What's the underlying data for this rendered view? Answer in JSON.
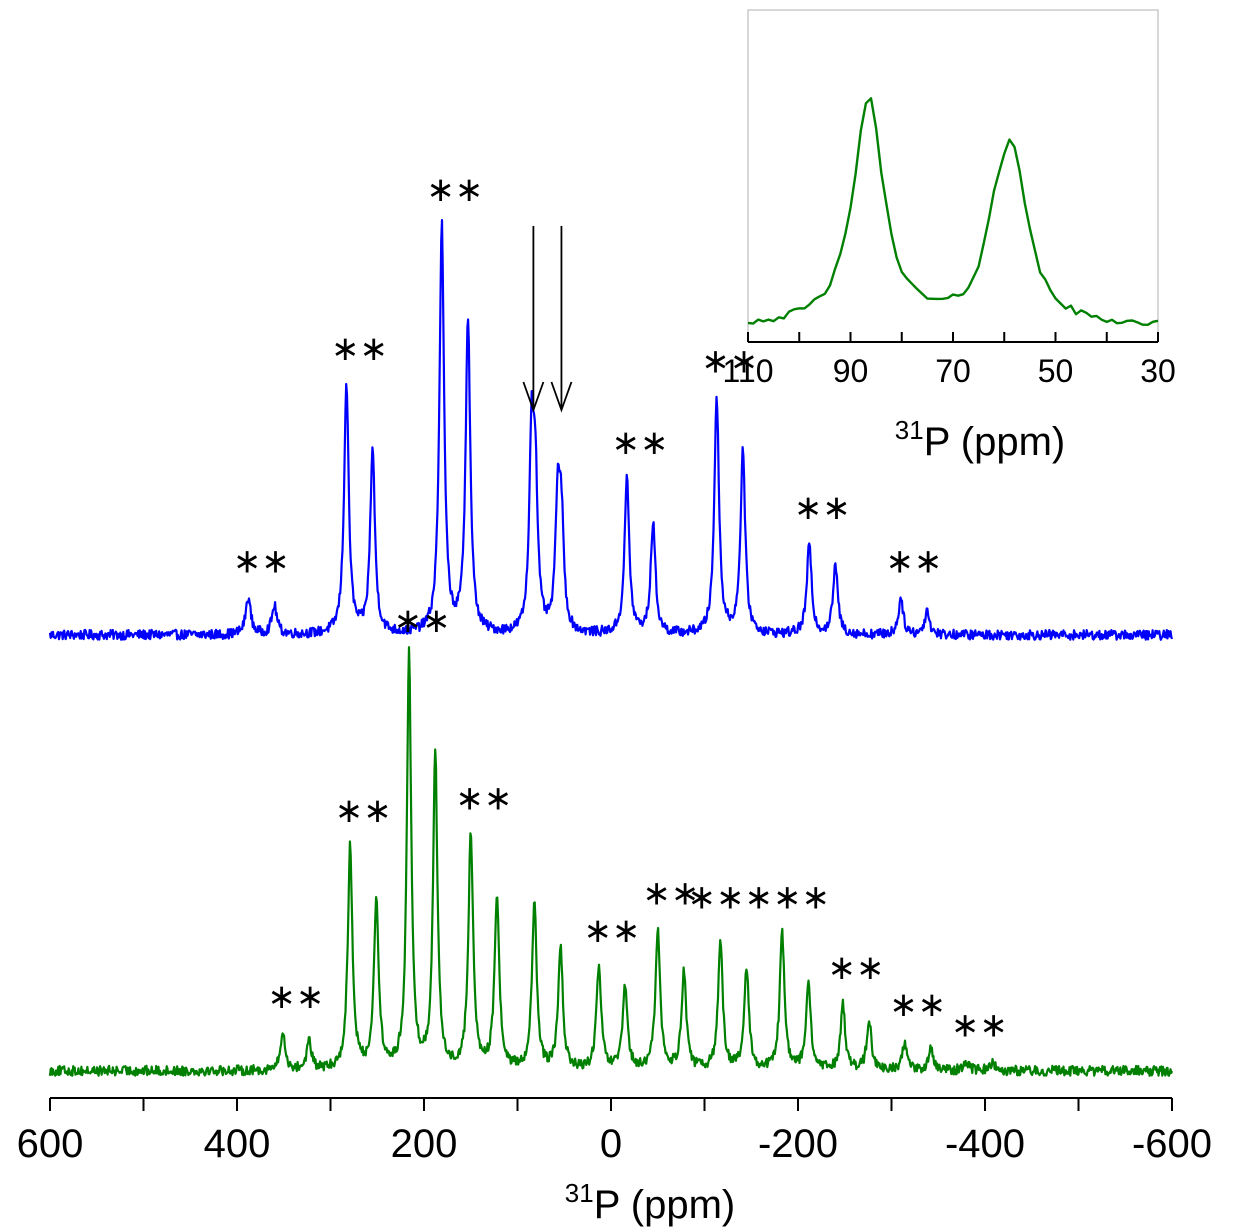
{
  "chart_data": [
    {
      "type": "line",
      "title": "",
      "xlabel": "31P (ppm)",
      "xlabel_parts": {
        "sup": "31",
        "main": "P (ppm)"
      },
      "ylabel": "",
      "xlim": [
        600,
        -600
      ],
      "x_ticks": [
        600,
        500,
        400,
        300,
        200,
        100,
        0,
        -100,
        -200,
        -300,
        -400,
        -500,
        -600
      ],
      "x_tick_labels": [
        "600",
        "400",
        "200",
        "0",
        "-200",
        "-400",
        "-600"
      ],
      "x_tick_label_values": [
        600,
        400,
        200,
        0,
        -200,
        -400,
        -600
      ],
      "grid": false,
      "legend": "none",
      "series": [
        {
          "color": "#0000ff",
          "baseline": 0,
          "noise": 0.012,
          "peaks": [
            {
              "x": 388,
              "h": 0.09,
              "w": 3.2
            },
            {
              "x": 360,
              "h": 0.07,
              "w": 3.2
            },
            {
              "x": 283,
              "h": 0.61,
              "w": 3
            },
            {
              "x": 255,
              "h": 0.45,
              "w": 3
            },
            {
              "x": 181,
              "h": 1.0,
              "w": 3
            },
            {
              "x": 153,
              "h": 0.77,
              "w": 3
            },
            {
              "x": 85,
              "h": 0.45,
              "w": 2.8
            },
            {
              "x": 81,
              "h": 0.36,
              "w": 3.0
            },
            {
              "x": 57,
              "h": 0.31,
              "w": 2.8
            },
            {
              "x": 53,
              "h": 0.26,
              "w": 3.0
            },
            {
              "x": -17,
              "h": 0.38,
              "w": 3
            },
            {
              "x": -45,
              "h": 0.27,
              "w": 3
            },
            {
              "x": -113,
              "h": 0.58,
              "w": 3
            },
            {
              "x": -141,
              "h": 0.45,
              "w": 3
            },
            {
              "x": -212,
              "h": 0.22,
              "w": 3
            },
            {
              "x": -240,
              "h": 0.17,
              "w": 3
            },
            {
              "x": -310,
              "h": 0.09,
              "w": 3
            },
            {
              "x": -338,
              "h": 0.06,
              "w": 3
            }
          ]
        },
        {
          "color": "#008000",
          "baseline": 0,
          "noise": 0.012,
          "peaks": [
            {
              "x": 351,
              "h": 0.09,
              "w": 3
            },
            {
              "x": 323,
              "h": 0.07,
              "w": 3
            },
            {
              "x": 279,
              "h": 0.54,
              "w": 3
            },
            {
              "x": 251,
              "h": 0.41,
              "w": 3
            },
            {
              "x": 216,
              "h": 1.0,
              "w": 2.8
            },
            {
              "x": 188,
              "h": 0.77,
              "w": 2.8
            },
            {
              "x": 150,
              "h": 0.57,
              "w": 3
            },
            {
              "x": 122,
              "h": 0.42,
              "w": 3
            },
            {
              "x": 82,
              "h": 0.4,
              "w": 3
            },
            {
              "x": 54,
              "h": 0.29,
              "w": 3
            },
            {
              "x": 13,
              "h": 0.25,
              "w": 3
            },
            {
              "x": -15,
              "h": 0.2,
              "w": 3
            },
            {
              "x": -50,
              "h": 0.34,
              "w": 3
            },
            {
              "x": -78,
              "h": 0.24,
              "w": 3
            },
            {
              "x": -117,
              "h": 0.31,
              "w": 3
            },
            {
              "x": -145,
              "h": 0.24,
              "w": 3
            },
            {
              "x": -183,
              "h": 0.33,
              "w": 3
            },
            {
              "x": -211,
              "h": 0.21,
              "w": 3
            },
            {
              "x": -248,
              "h": 0.16,
              "w": 3
            },
            {
              "x": -276,
              "h": 0.12,
              "w": 3
            },
            {
              "x": -314,
              "h": 0.07,
              "w": 3
            },
            {
              "x": -342,
              "h": 0.05,
              "w": 3
            },
            {
              "x": -380,
              "h": 0.02,
              "w": 4
            },
            {
              "x": -408,
              "h": 0.02,
              "w": 4
            }
          ]
        }
      ],
      "annotations": {
        "spinning_sideband_marks": {
          "symbol": "∗∗",
          "symbol5": "∗∗∗∗∗",
          "blue": [
            {
              "center_ppm": 374,
              "text": "∗∗"
            },
            {
              "center_ppm": 269,
              "text": "∗∗"
            },
            {
              "center_ppm": 167,
              "text": "∗∗"
            },
            {
              "center_ppm": -31,
              "text": "∗∗"
            },
            {
              "center_ppm": -127,
              "text": "∗∗"
            },
            {
              "center_ppm": -226,
              "text": "∗∗"
            },
            {
              "center_ppm": -324,
              "text": "∗∗"
            }
          ],
          "green": [
            {
              "center_ppm": 337,
              "text": "∗∗"
            },
            {
              "center_ppm": 265,
              "text": "∗∗"
            },
            {
              "center_ppm": 202,
              "text": "∗∗"
            },
            {
              "center_ppm": 136,
              "text": "∗∗"
            },
            {
              "center_ppm": -1,
              "text": "∗∗"
            },
            {
              "center_ppm": -64,
              "text": "∗∗"
            },
            {
              "center_ppm": -158,
              "text": "∗∗∗∗∗"
            },
            {
              "center_ppm": -262,
              "text": "∗∗"
            },
            {
              "center_ppm": -328,
              "text": "∗∗"
            },
            {
              "center_ppm": -394,
              "text": "∗∗"
            }
          ]
        },
        "arrows_ppm": [
          83,
          53
        ]
      }
    },
    {
      "type": "line",
      "title": "",
      "xlabel": "31P (ppm)",
      "xlabel_parts": {
        "sup": "31",
        "main": "P (ppm)"
      },
      "ylabel": "",
      "xlim": [
        110,
        30
      ],
      "x_ticks": [
        110,
        100,
        90,
        80,
        70,
        60,
        50,
        40,
        30
      ],
      "x_tick_labels": [
        "110",
        "90",
        "70",
        "50",
        "30"
      ],
      "x_tick_label_values": [
        110,
        90,
        70,
        50,
        30
      ],
      "ylim": [
        -0.05,
        1.08
      ],
      "grid": false,
      "legend": "none",
      "series": [
        {
          "color": "#008000",
          "baseline": 0,
          "noise": 0.012,
          "peaks": [
            {
              "x": 86.5,
              "h": 0.99,
              "w": 3.6
            },
            {
              "x": 58.5,
              "h": 0.75,
              "w": 3.6
            },
            {
              "x": 62,
              "h": 0.18,
              "w": 2.5
            }
          ]
        }
      ]
    }
  ]
}
